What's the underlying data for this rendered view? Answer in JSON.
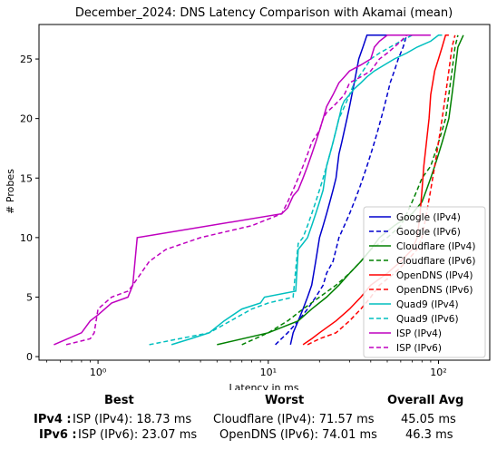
{
  "chart_data": {
    "type": "line",
    "title": "December_2024: DNS Latency Comparison with Akamai (mean)",
    "xlabel": "Latency in ms",
    "ylabel": "# Probes",
    "xscale": "log",
    "xlim": [
      0.45,
      200
    ],
    "ylim": [
      -0.3,
      27.9
    ],
    "x_ticks": [
      {
        "value": 1,
        "label": "10⁰"
      },
      {
        "value": 10,
        "label": "10¹"
      },
      {
        "value": 100,
        "label": "10²"
      }
    ],
    "y_ticks": [
      0,
      5,
      10,
      15,
      20,
      25
    ],
    "legend_position": "lower right",
    "grid": false,
    "series": [
      {
        "name": "Google (IPv4)",
        "color": "#0000cd",
        "dash": "solid",
        "x": [
          13.5,
          14,
          15,
          16,
          17,
          18,
          18.5,
          19,
          19.5,
          20,
          21,
          22,
          23,
          24,
          25,
          25.5,
          26,
          27,
          28,
          29,
          30,
          31,
          32,
          33,
          34,
          36,
          38,
          40,
          42,
          44,
          48,
          52,
          60,
          68,
          72
        ],
        "y": [
          1,
          2,
          3,
          4,
          5,
          6,
          7,
          8,
          9,
          10,
          11,
          12,
          13,
          14,
          15,
          16,
          17,
          18,
          19,
          20,
          21,
          22,
          23,
          24,
          25,
          26,
          27,
          27,
          27,
          27,
          27,
          27,
          27,
          27,
          27
        ]
      },
      {
        "name": "Google (IPv6)",
        "color": "#0000cd",
        "dash": "dashed",
        "x": [
          11,
          13,
          15,
          17,
          19,
          21,
          22,
          24,
          25,
          26,
          28,
          30,
          32,
          34,
          36,
          38,
          40,
          42,
          44,
          46,
          48,
          50,
          52,
          55,
          58,
          62,
          65,
          70,
          75
        ],
        "y": [
          1,
          2,
          3,
          4,
          5,
          6,
          7,
          8,
          9,
          10,
          11,
          12,
          13,
          14,
          15,
          16,
          17,
          18,
          19,
          20,
          21,
          22,
          23,
          24,
          25,
          26,
          27,
          27,
          27
        ]
      },
      {
        "name": "Cloudflare (IPv4)",
        "color": "#008000",
        "dash": "solid",
        "x": [
          5,
          10,
          15,
          18,
          22,
          26,
          30,
          35,
          40,
          45,
          55,
          70,
          80,
          85,
          90,
          95,
          100,
          105,
          110,
          115,
          120,
          125,
          130,
          140
        ],
        "y": [
          1,
          2,
          3,
          4,
          5,
          6,
          7,
          8,
          9,
          10,
          11,
          12,
          13,
          14,
          15,
          16,
          17,
          18,
          19,
          20,
          22,
          24,
          26,
          27
        ]
      },
      {
        "name": "Cloudflare (IPv6)",
        "color": "#008000",
        "dash": "dashed",
        "x": [
          7,
          10,
          13,
          16,
          20,
          25,
          30,
          35,
          40,
          50,
          60,
          65,
          70,
          75,
          80,
          90,
          95,
          100,
          105,
          110,
          115,
          120,
          125,
          130
        ],
        "y": [
          1,
          2,
          3,
          4,
          5,
          6,
          7,
          8,
          9,
          10,
          11,
          12,
          13,
          14,
          15,
          16,
          17,
          18,
          19,
          20,
          22,
          24,
          26,
          27
        ]
      },
      {
        "name": "OpenDNS (IPv4)",
        "color": "#ff0000",
        "dash": "solid",
        "x": [
          16,
          18,
          20,
          25,
          30,
          35,
          40,
          50,
          60,
          70,
          75,
          78,
          80,
          82,
          85,
          88,
          90,
          95,
          100,
          105,
          110,
          115
        ],
        "y": [
          1,
          1.5,
          2,
          3,
          4,
          5,
          6,
          7,
          8,
          9,
          10,
          12,
          14,
          16,
          18,
          20,
          22,
          24,
          25,
          26,
          27,
          27
        ]
      },
      {
        "name": "OpenDNS (IPv6)",
        "color": "#ff0000",
        "dash": "dashed",
        "x": [
          17,
          20,
          25,
          30,
          35,
          40,
          45,
          55,
          65,
          75,
          80,
          85,
          90,
          95,
          100,
          105,
          110,
          115,
          120,
          125
        ],
        "y": [
          1,
          1.5,
          2,
          3,
          4,
          5,
          6,
          7,
          8,
          9,
          10,
          12,
          14,
          16,
          18,
          20,
          22,
          24,
          26,
          27
        ]
      },
      {
        "name": "Quad9 (IPv4)",
        "color": "#00bfbf",
        "dash": "solid",
        "x": [
          2.7,
          3.5,
          4.5,
          5.5,
          7,
          9,
          9.5,
          14.5,
          15,
          16,
          17,
          18,
          19,
          20,
          21,
          21.5,
          22,
          23,
          24,
          25,
          26,
          27,
          28,
          30,
          32,
          35,
          38,
          42,
          48,
          55,
          65,
          75,
          90,
          100,
          105
        ],
        "y": [
          1,
          1.5,
          2,
          3,
          4,
          4.5,
          5,
          5.5,
          9,
          9.5,
          10,
          11,
          12,
          13,
          14,
          15,
          16,
          17,
          18,
          19,
          20,
          21,
          21.5,
          22,
          22.5,
          23,
          23.5,
          24,
          24.5,
          25,
          25.5,
          26,
          26.5,
          27,
          27
        ]
      },
      {
        "name": "Quad9 (IPv6)",
        "color": "#00bfbf",
        "dash": "dashed",
        "x": [
          2,
          3,
          4.5,
          6,
          8,
          10,
          14,
          15,
          16,
          17,
          18,
          19,
          20,
          21,
          22,
          23,
          24,
          25,
          26,
          27,
          28,
          29,
          30,
          31,
          32,
          34,
          36,
          38,
          40,
          45,
          52,
          60,
          70,
          80
        ],
        "y": [
          1,
          1.5,
          2,
          3,
          4,
          4.5,
          5,
          9.5,
          10,
          11,
          12,
          13,
          14,
          15,
          16,
          17,
          18,
          19,
          20,
          20.5,
          21,
          21.5,
          22,
          22.5,
          23,
          23.5,
          24,
          24.5,
          25,
          25.5,
          26,
          26.5,
          27,
          27
        ]
      },
      {
        "name": "ISP (IPv4)",
        "color": "#bf00bf",
        "dash": "solid",
        "x": [
          0.55,
          0.8,
          0.9,
          1,
          1.2,
          1.5,
          1.6,
          1.7,
          12,
          13,
          14,
          15,
          16,
          17,
          18,
          19,
          20,
          21,
          22,
          24,
          26,
          28,
          30,
          35,
          40,
          42,
          45,
          50,
          60,
          70,
          80,
          90
        ],
        "y": [
          1,
          2,
          3,
          3.5,
          4.5,
          5,
          6,
          10,
          12,
          12.5,
          13.5,
          14,
          15,
          16,
          17,
          18,
          19,
          20,
          21,
          22,
          23,
          23.5,
          24,
          24.5,
          25,
          26,
          26.5,
          27,
          27,
          27,
          27,
          27
        ]
      },
      {
        "name": "ISP (IPv6)",
        "color": "#bf00bf",
        "dash": "dashed",
        "x": [
          0.65,
          0.9,
          0.95,
          1,
          1.2,
          1.5,
          1.6,
          2,
          2.5,
          4,
          8,
          12,
          13,
          14,
          15,
          16,
          17,
          18,
          19,
          20,
          21,
          22,
          24,
          26,
          28,
          30,
          35,
          40,
          45,
          50,
          55,
          60,
          65,
          70
        ],
        "y": [
          1,
          1.5,
          2,
          4,
          5,
          5.5,
          6,
          8,
          9,
          10,
          11,
          12,
          13,
          14,
          15,
          16,
          17,
          18,
          18.5,
          19,
          20,
          20.5,
          21,
          21.5,
          22,
          23,
          23.5,
          24,
          25,
          25.5,
          26,
          26.5,
          27,
          27
        ]
      }
    ]
  },
  "summary": {
    "header_best": "Best",
    "header_worst": "Worst",
    "header_avg": "Overall Avg",
    "rows": [
      {
        "label": "IPv4 :",
        "best": "ISP (IPv4): 18.73 ms",
        "worst": "Cloudflare (IPv4): 71.57 ms",
        "avg": "45.05 ms"
      },
      {
        "label": "IPv6 :",
        "best": "ISP (IPv6): 23.07 ms",
        "worst": "OpenDNS (IPv6): 74.01 ms",
        "avg": "46.3 ms"
      }
    ]
  }
}
